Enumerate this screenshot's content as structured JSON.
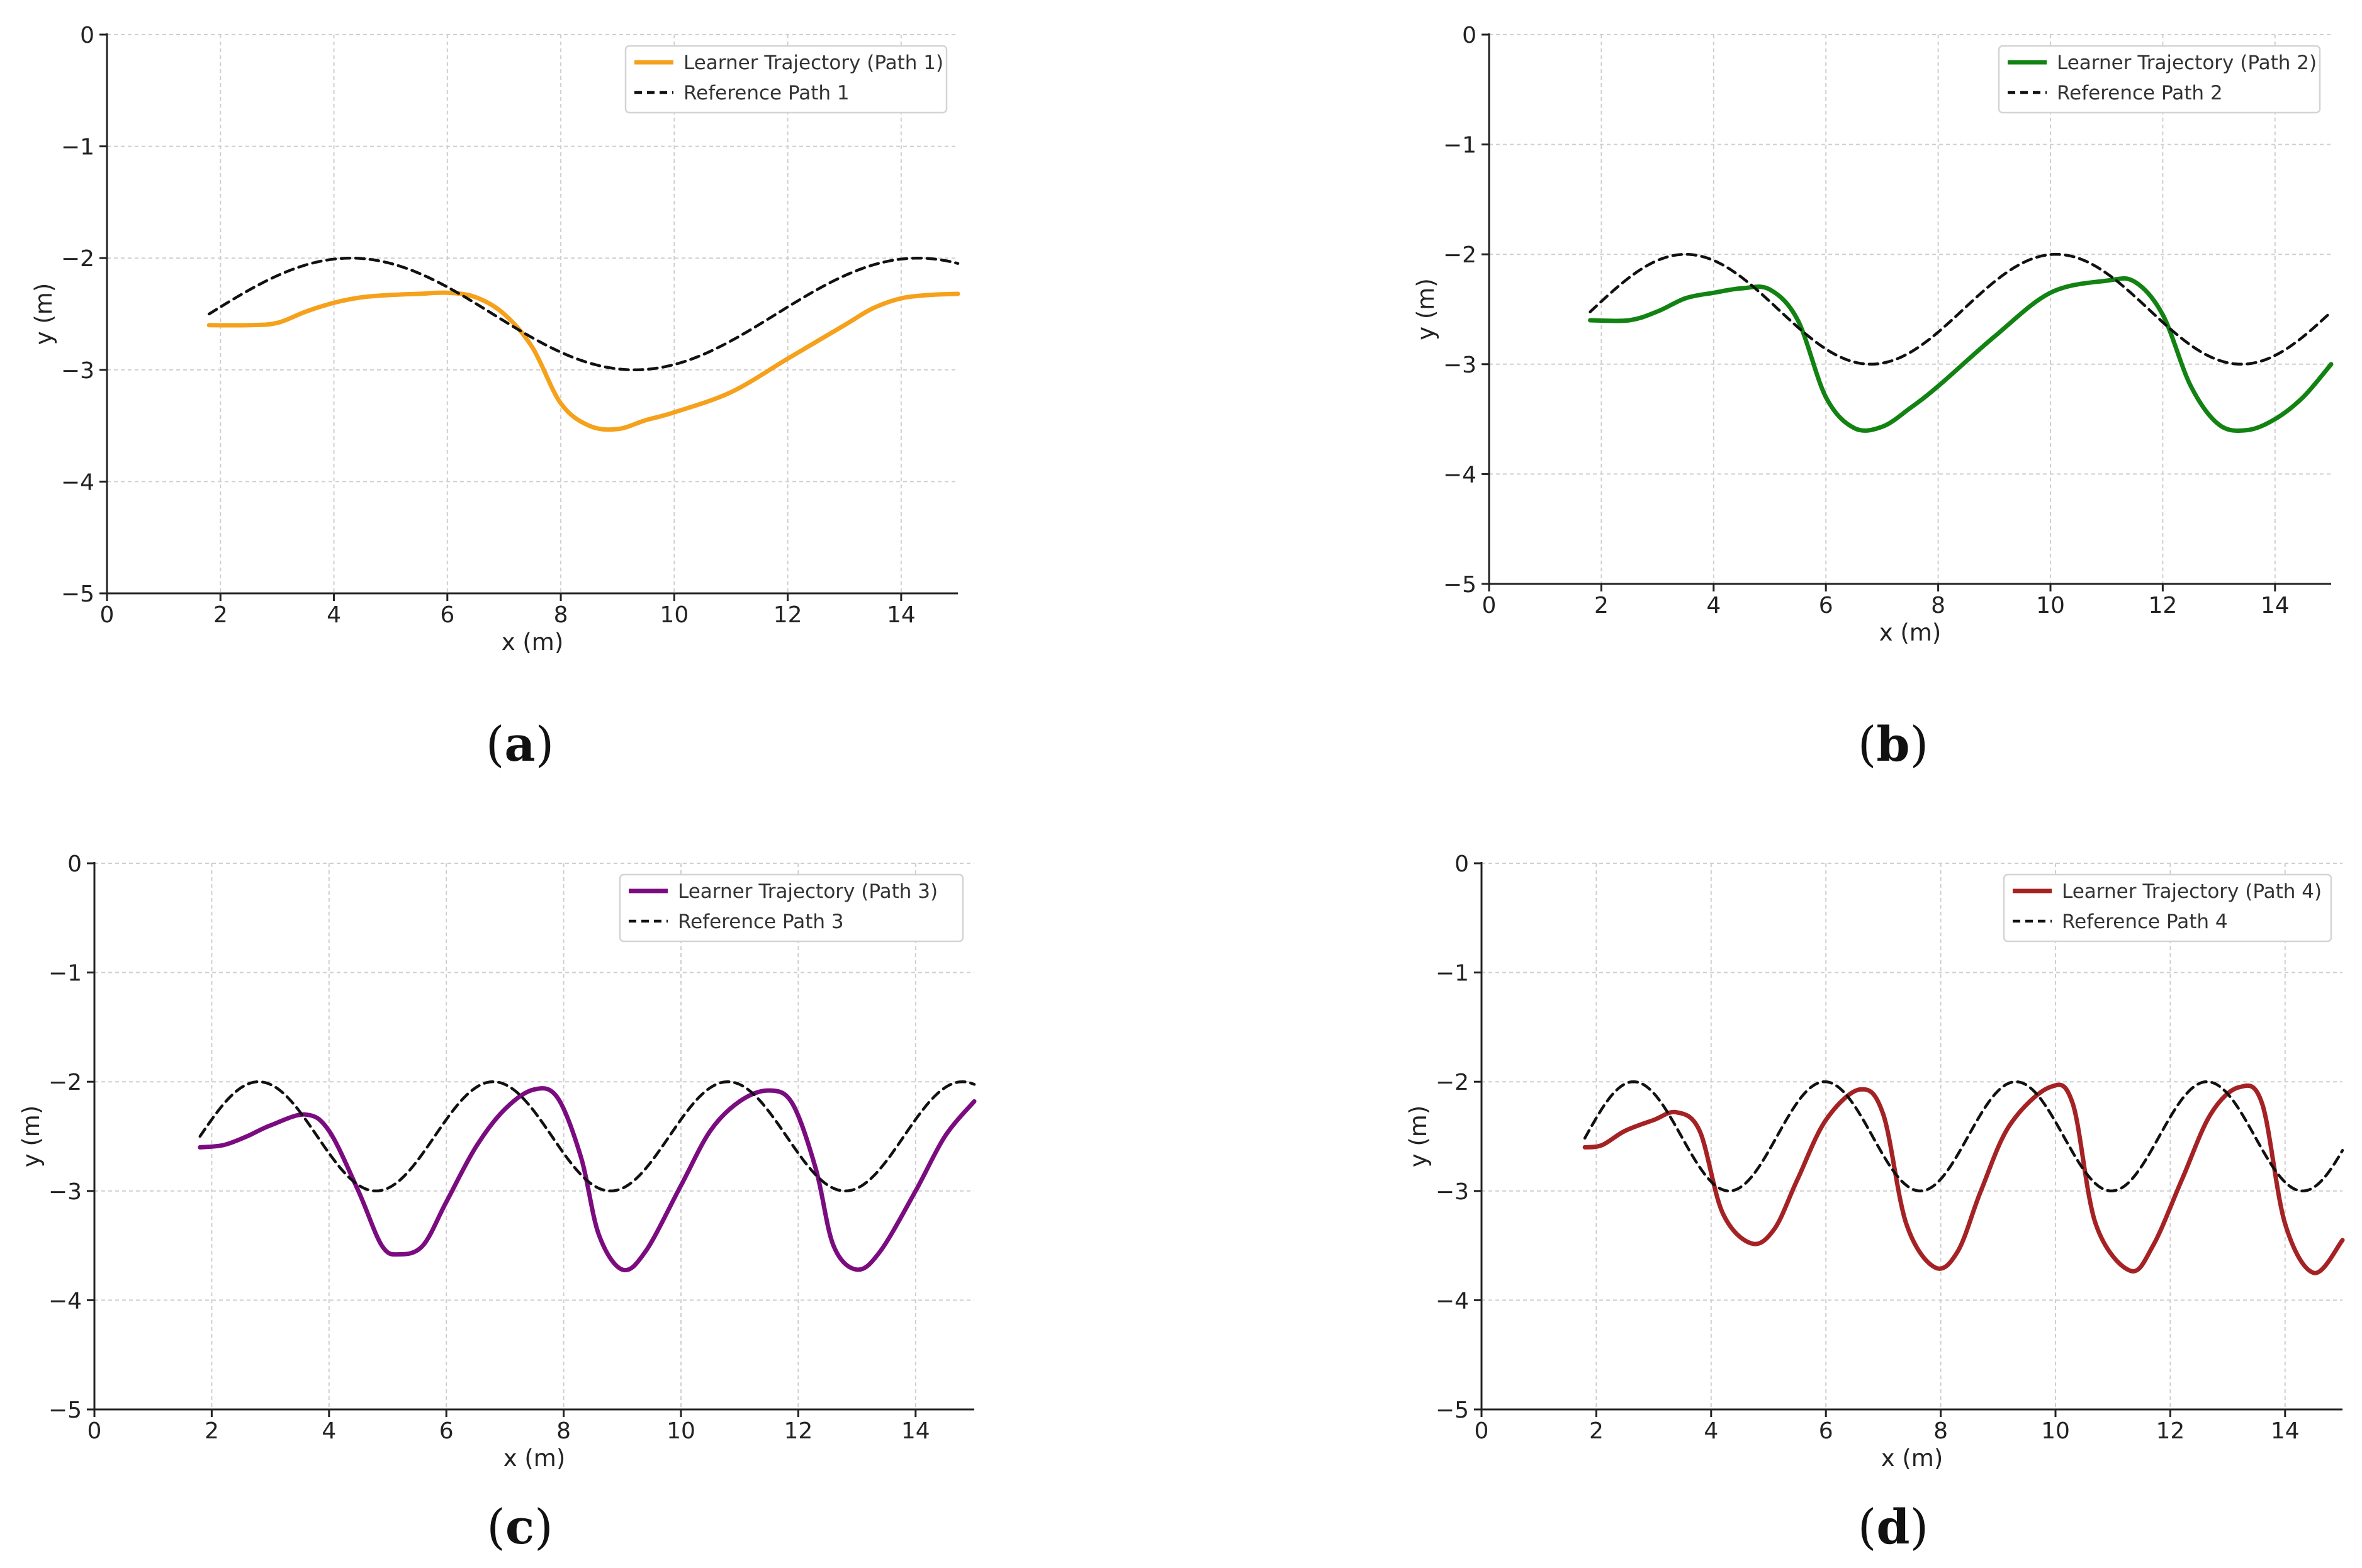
{
  "figure": {
    "panels": [
      {
        "caption": "a",
        "caption_open": "(",
        "caption_close": ")",
        "ref": {
          "amplitude": 0.5,
          "center": -2.5,
          "period": 10.0,
          "crest": 4.3
        }
      },
      {
        "caption": "b",
        "caption_open": "(",
        "caption_close": ")",
        "ref": {
          "amplitude": 0.5,
          "center": -2.5,
          "period": 6.6,
          "crest": 3.5
        }
      },
      {
        "caption": "c",
        "caption_open": "(",
        "caption_close": ")",
        "ref": {
          "amplitude": 0.5,
          "center": -2.5,
          "period": 4.0,
          "crest": 2.8
        }
      },
      {
        "caption": "d",
        "caption_open": "(",
        "caption_close": ")",
        "ref": {
          "amplitude": 0.5,
          "center": -2.5,
          "period": 3.33,
          "crest": 2.65
        }
      }
    ]
  },
  "chart_data": [
    {
      "type": "line",
      "title": "",
      "xlabel": "x (m)",
      "ylabel": "y (m)",
      "xlim": [
        0,
        15
      ],
      "ylim": [
        -5,
        0
      ],
      "xticks": [
        0,
        2,
        4,
        6,
        8,
        10,
        12,
        14
      ],
      "xtick_labels": [
        "0",
        "2",
        "4",
        "6",
        "8",
        "10",
        "12",
        "14"
      ],
      "yticks": [
        0,
        -1,
        -2,
        -3,
        -4,
        -5
      ],
      "ytick_labels": [
        "0",
        "−1",
        "−2",
        "−3",
        "−4",
        "−5"
      ],
      "grid": true,
      "legend_position": "top-right",
      "series": [
        {
          "name": "Learner Trajectory (Path 1)",
          "color": "#f5a11c",
          "style": "solid",
          "x": [
            1.8,
            2.5,
            3.0,
            3.5,
            4.0,
            4.5,
            5.0,
            5.5,
            6.0,
            6.5,
            7.0,
            7.5,
            8.0,
            8.5,
            9.0,
            9.5,
            10.0,
            11.0,
            12.0,
            13.0,
            13.5,
            14.0,
            14.5,
            15.0
          ],
          "y": [
            -2.6,
            -2.6,
            -2.58,
            -2.48,
            -2.4,
            -2.35,
            -2.33,
            -2.32,
            -2.31,
            -2.35,
            -2.5,
            -2.8,
            -3.3,
            -3.5,
            -3.53,
            -3.45,
            -3.38,
            -3.2,
            -2.9,
            -2.6,
            -2.45,
            -2.36,
            -2.33,
            -2.32
          ]
        },
        {
          "name": "Reference Path 1",
          "color": "#111111",
          "style": "dashed",
          "x": [
            1.8,
            15.0
          ],
          "y": [
            -2.5,
            -2.06
          ]
        }
      ]
    },
    {
      "type": "line",
      "title": "",
      "xlabel": "x (m)",
      "ylabel": "y (m)",
      "xlim": [
        0,
        15
      ],
      "ylim": [
        -5,
        0
      ],
      "xticks": [
        0,
        2,
        4,
        6,
        8,
        10,
        12,
        14
      ],
      "xtick_labels": [
        "0",
        "2",
        "4",
        "6",
        "8",
        "10",
        "12",
        "14"
      ],
      "yticks": [
        0,
        -1,
        -2,
        -3,
        -4,
        -5
      ],
      "ytick_labels": [
        "0",
        "−1",
        "−2",
        "−3",
        "−4",
        "−5"
      ],
      "grid": true,
      "legend_position": "top-right",
      "series": [
        {
          "name": "Learner Trajectory (Path 2)",
          "color": "#128212",
          "style": "solid",
          "x": [
            1.8,
            2.5,
            3.0,
            3.5,
            4.0,
            4.5,
            5.0,
            5.5,
            6.0,
            6.5,
            7.0,
            7.5,
            8.0,
            9.0,
            10.0,
            11.0,
            11.5,
            12.0,
            12.5,
            13.0,
            13.5,
            14.0,
            14.5,
            15.0
          ],
          "y": [
            -2.6,
            -2.6,
            -2.52,
            -2.4,
            -2.35,
            -2.31,
            -2.32,
            -2.6,
            -3.3,
            -3.58,
            -3.57,
            -3.4,
            -3.2,
            -2.75,
            -2.35,
            -2.24,
            -2.25,
            -2.55,
            -3.2,
            -3.55,
            -3.6,
            -3.5,
            -3.3,
            -3.0
          ]
        },
        {
          "name": "Reference Path 2",
          "color": "#111111",
          "style": "dashed",
          "x": [
            1.8,
            15.0
          ],
          "y": [
            -2.5,
            -2.6
          ]
        }
      ]
    },
    {
      "type": "line",
      "title": "",
      "xlabel": "x (m)",
      "ylabel": "y (m)",
      "xlim": [
        0,
        15
      ],
      "ylim": [
        -5,
        0
      ],
      "xticks": [
        0,
        2,
        4,
        6,
        8,
        10,
        12,
        14
      ],
      "xtick_labels": [
        "0",
        "2",
        "4",
        "6",
        "8",
        "10",
        "12",
        "14"
      ],
      "yticks": [
        0,
        -1,
        -2,
        -3,
        -4,
        -5
      ],
      "ytick_labels": [
        "0",
        "−1",
        "−2",
        "−3",
        "−4",
        "−5"
      ],
      "grid": true,
      "legend_position": "top-right",
      "series": [
        {
          "name": "Learner Trajectory (Path 3)",
          "color": "#7b0c80",
          "style": "solid",
          "x": [
            1.8,
            2.2,
            2.6,
            3.0,
            3.6,
            4.0,
            4.5,
            4.9,
            5.2,
            5.6,
            6.0,
            6.5,
            7.0,
            7.5,
            7.9,
            8.3,
            8.6,
            9.0,
            9.4,
            10.0,
            10.5,
            11.0,
            11.5,
            11.9,
            12.3,
            12.6,
            13.0,
            13.4,
            14.0,
            14.5,
            15.0
          ],
          "y": [
            -2.6,
            -2.58,
            -2.5,
            -2.4,
            -2.3,
            -2.45,
            -3.0,
            -3.5,
            -3.58,
            -3.5,
            -3.1,
            -2.6,
            -2.25,
            -2.07,
            -2.15,
            -2.7,
            -3.4,
            -3.72,
            -3.55,
            -2.95,
            -2.45,
            -2.18,
            -2.08,
            -2.2,
            -2.8,
            -3.5,
            -3.72,
            -3.55,
            -3.0,
            -2.5,
            -2.18
          ]
        },
        {
          "name": "Reference Path 3",
          "color": "#111111",
          "style": "dashed",
          "x": [
            1.8,
            15.0
          ],
          "y": [
            -2.5,
            -2.0
          ]
        }
      ]
    },
    {
      "type": "line",
      "title": "",
      "xlabel": "x (m)",
      "ylabel": "y (m)",
      "xlim": [
        0,
        15
      ],
      "ylim": [
        -5,
        0
      ],
      "xticks": [
        0,
        2,
        4,
        6,
        8,
        10,
        12,
        14
      ],
      "xtick_labels": [
        "0",
        "2",
        "4",
        "6",
        "8",
        "10",
        "12",
        "14"
      ],
      "yticks": [
        0,
        -1,
        -2,
        -3,
        -4,
        -5
      ],
      "ytick_labels": [
        "0",
        "−1",
        "−2",
        "−3",
        "−4",
        "−5"
      ],
      "grid": true,
      "legend_position": "top-right",
      "series": [
        {
          "name": "Learner Trajectory (Path 4)",
          "color": "#a52224",
          "style": "solid",
          "x": [
            1.8,
            2.1,
            2.5,
            3.0,
            3.4,
            3.8,
            4.2,
            4.7,
            5.1,
            5.5,
            6.0,
            6.6,
            7.0,
            7.4,
            7.9,
            8.3,
            8.7,
            9.2,
            9.9,
            10.3,
            10.7,
            11.3,
            11.7,
            12.2,
            12.7,
            13.2,
            13.6,
            14.0,
            14.5,
            15.0
          ],
          "y": [
            -2.6,
            -2.58,
            -2.45,
            -2.35,
            -2.28,
            -2.45,
            -3.2,
            -3.48,
            -3.35,
            -2.9,
            -2.35,
            -2.07,
            -2.3,
            -3.3,
            -3.7,
            -3.55,
            -3.0,
            -2.4,
            -2.05,
            -2.2,
            -3.3,
            -3.73,
            -3.5,
            -2.9,
            -2.3,
            -2.05,
            -2.2,
            -3.3,
            -3.75,
            -3.45
          ]
        },
        {
          "name": "Reference Path 4",
          "color": "#111111",
          "style": "dashed",
          "x": [
            1.8,
            15.0
          ],
          "y": [
            -2.5,
            -2.6
          ]
        }
      ]
    }
  ]
}
